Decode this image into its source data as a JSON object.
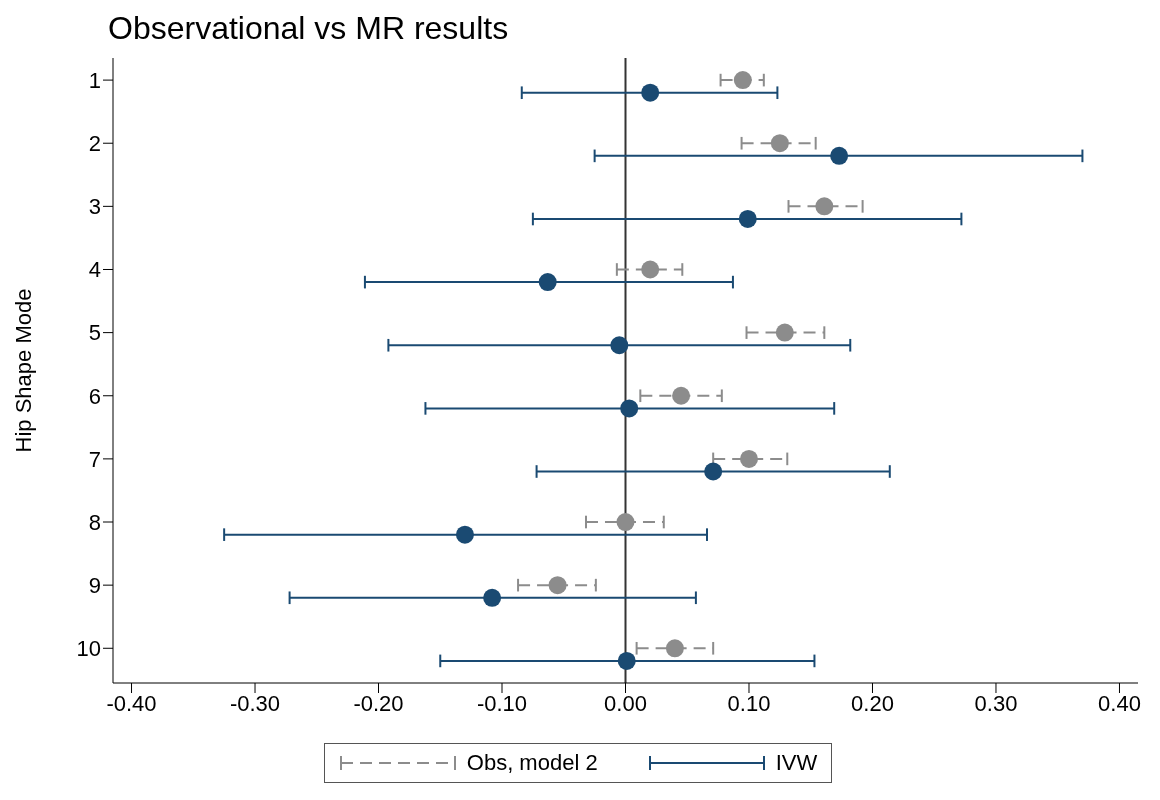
{
  "chart_data": {
    "type": "scatter",
    "title": "Observational vs MR results",
    "ylabel": "Hip Shape Mode",
    "xlim": [
      -0.415,
      0.415
    ],
    "xticks": [
      {
        "value": -0.4,
        "label": "-0.40"
      },
      {
        "value": -0.3,
        "label": "-0.30"
      },
      {
        "value": -0.2,
        "label": "-0.20"
      },
      {
        "value": -0.1,
        "label": "-0.10"
      },
      {
        "value": 0,
        "label": "0.00"
      },
      {
        "value": 0.1,
        "label": "0.10"
      },
      {
        "value": 0.2,
        "label": "0.20"
      },
      {
        "value": 0.3,
        "label": "0.30"
      },
      {
        "value": 0.4,
        "label": "0.40"
      }
    ],
    "ylim": [
      10.55,
      0.65
    ],
    "yticks": [
      1,
      2,
      3,
      4,
      5,
      6,
      7,
      8,
      9,
      10
    ],
    "grid": false,
    "legend": "bottom",
    "marker": "circle",
    "ref_lines": [
      {
        "axis": "x",
        "value": 0,
        "color": "#333333"
      }
    ],
    "series": [
      {
        "name": "Obs, model 2",
        "color": "#8c8c8c",
        "line_style": "dashed",
        "x": [
          0.095,
          0.125,
          0.161,
          0.02,
          0.129,
          0.045,
          0.1,
          0.0,
          -0.055,
          0.04
        ],
        "values": [
          1,
          2,
          3,
          4,
          5,
          6,
          7,
          8,
          9,
          10
        ],
        "xerrors": [
          [
            0.077,
            0.112
          ],
          [
            0.094,
            0.154
          ],
          [
            0.132,
            0.192
          ],
          [
            -0.007,
            0.046
          ],
          [
            0.098,
            0.161
          ],
          [
            0.012,
            0.078
          ],
          [
            0.071,
            0.131
          ],
          [
            -0.032,
            0.031
          ],
          [
            -0.087,
            -0.024
          ],
          [
            0.009,
            0.071
          ]
        ]
      },
      {
        "name": "IVW",
        "color": "#1a4a72",
        "line_style": "solid",
        "x": [
          0.02,
          0.173,
          0.099,
          -0.063,
          -0.005,
          0.003,
          0.071,
          -0.13,
          -0.108,
          0.001
        ],
        "values": [
          1.2,
          2.2,
          3.2,
          4.2,
          5.2,
          6.2,
          7.2,
          8.2,
          9.2,
          10.2
        ],
        "xerrors": [
          [
            -0.084,
            0.123
          ],
          [
            -0.025,
            0.37
          ],
          [
            -0.075,
            0.272
          ],
          [
            -0.211,
            0.087
          ],
          [
            -0.192,
            0.182
          ],
          [
            -0.162,
            0.169
          ],
          [
            -0.072,
            0.214
          ],
          [
            -0.325,
            0.066
          ],
          [
            -0.272,
            0.057
          ],
          [
            -0.15,
            0.153
          ]
        ]
      }
    ]
  }
}
